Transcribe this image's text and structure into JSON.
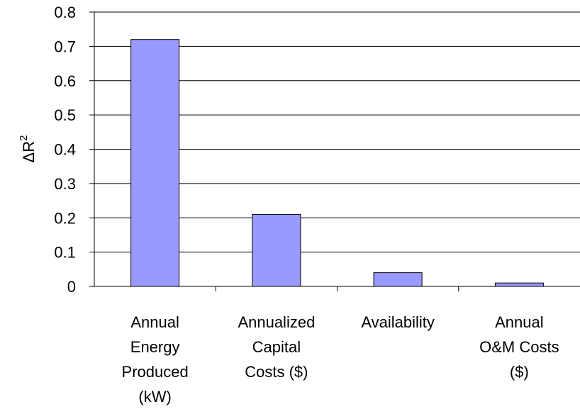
{
  "chart_data": {
    "type": "bar",
    "title": "",
    "xlabel": "",
    "ylabel": "ΔR",
    "ylabel_superscript": "2",
    "categories": [
      [
        "Annual",
        "Energy",
        "Produced",
        "(kW)"
      ],
      [
        "Annualized",
        "Capital",
        "Costs ($)"
      ],
      [
        "Availability"
      ],
      [
        "Annual",
        "O&M Costs",
        "($)"
      ]
    ],
    "values": [
      0.72,
      0.21,
      0.04,
      0.01
    ],
    "ylim": [
      0,
      0.8
    ],
    "yticks": [
      "0",
      "0.1",
      "0.2",
      "0.3",
      "0.4",
      "0.5",
      "0.6",
      "0.7",
      "0.8"
    ],
    "grid": true,
    "legend": "none",
    "bar_color": "#9999ff"
  }
}
